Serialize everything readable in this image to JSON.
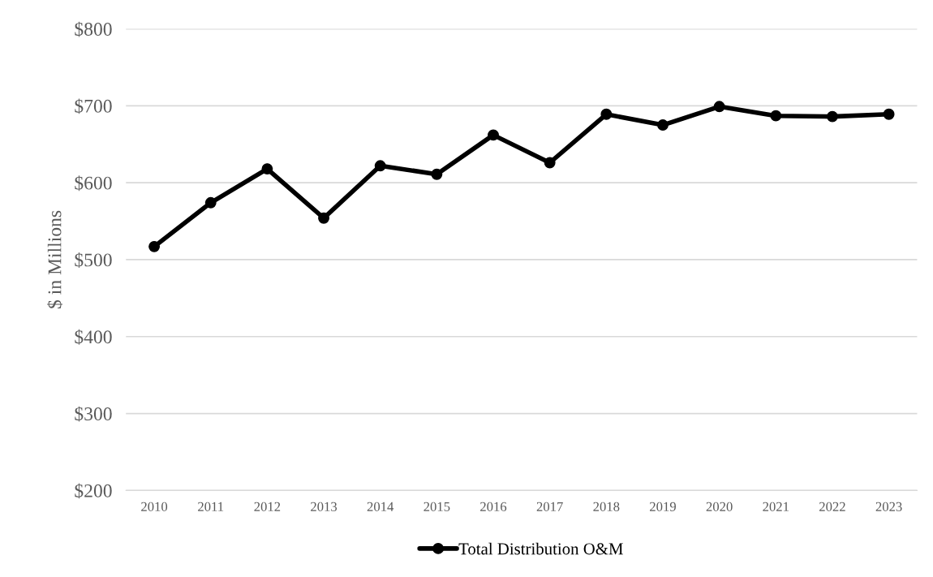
{
  "chart_data": {
    "type": "line",
    "ylabel": "$ in Millions",
    "categories": [
      "2010",
      "2011",
      "2012",
      "2013",
      "2014",
      "2015",
      "2016",
      "2017",
      "2018",
      "2019",
      "2020",
      "2021",
      "2022",
      "2023"
    ],
    "series": [
      {
        "name": "Total Distribution O&M",
        "color": "#000000",
        "values": [
          517,
          574,
          618,
          554,
          622,
          611,
          662,
          626,
          689,
          675,
          699,
          687,
          686,
          689
        ]
      }
    ],
    "ylim": [
      200,
      800
    ],
    "yticks": [
      {
        "value": 200,
        "label": "$200"
      },
      {
        "value": 300,
        "label": "$300"
      },
      {
        "value": 400,
        "label": "$400"
      },
      {
        "value": 500,
        "label": "$500"
      },
      {
        "value": 600,
        "label": "$600"
      },
      {
        "value": 700,
        "label": "$700"
      },
      {
        "value": 800,
        "label": "$800"
      }
    ],
    "grid": "y",
    "legend": "bottom",
    "marker": "circle",
    "line_style": "solid"
  }
}
